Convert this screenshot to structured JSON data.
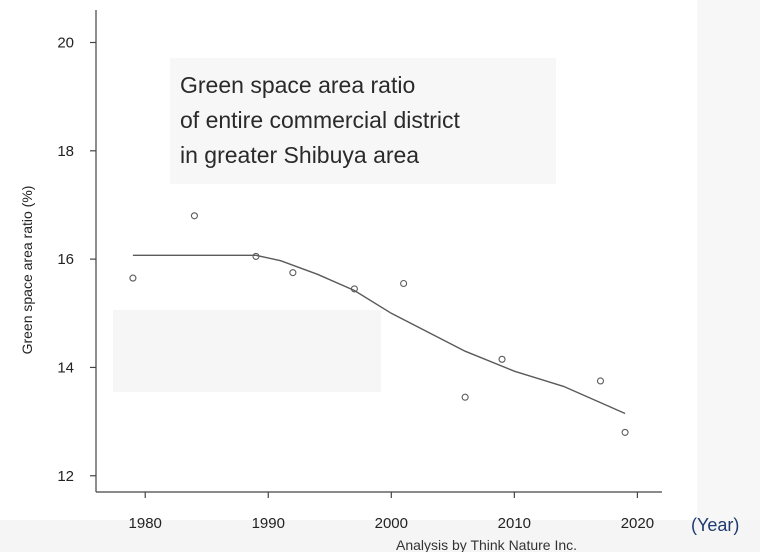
{
  "chart_data": {
    "type": "scatter",
    "title": "",
    "annotation_lines": [
      "Green space area ratio",
      "of entire commercial district",
      "in greater Shibuya area"
    ],
    "xlabel": "(Year)",
    "ylabel": "Green space area ratio (%)",
    "xlim": [
      1976,
      2022
    ],
    "ylim": [
      11.7,
      20.6
    ],
    "x_ticks": [
      1980,
      1990,
      2000,
      2010,
      2020
    ],
    "y_ticks": [
      12,
      14,
      16,
      18,
      20
    ],
    "grid": false,
    "legend": "none",
    "series": [
      {
        "kind": "points",
        "x": [
          1979,
          1984,
          1989,
          1992,
          1997,
          2001,
          2006,
          2009,
          2017,
          2019
        ],
        "y": [
          15.65,
          16.8,
          16.05,
          15.75,
          15.45,
          15.55,
          13.45,
          14.15,
          13.75,
          12.8
        ]
      },
      {
        "kind": "trend-line",
        "x": [
          1979,
          1983,
          1987,
          1989,
          1991,
          1994,
          1997,
          2000,
          2003,
          2006,
          2010,
          2014,
          2017,
          2019
        ],
        "y": [
          16.07,
          16.07,
          16.07,
          16.07,
          15.97,
          15.72,
          15.42,
          15.0,
          14.65,
          14.3,
          13.93,
          13.65,
          13.35,
          13.15
        ]
      }
    ],
    "colors": {
      "marks": "#5a5a5a",
      "axis": "#444444",
      "unit_label": "#1f3a6e",
      "annotation_bg": "#f7f7f7"
    }
  },
  "credit": "Analysis by Think Nature Inc."
}
